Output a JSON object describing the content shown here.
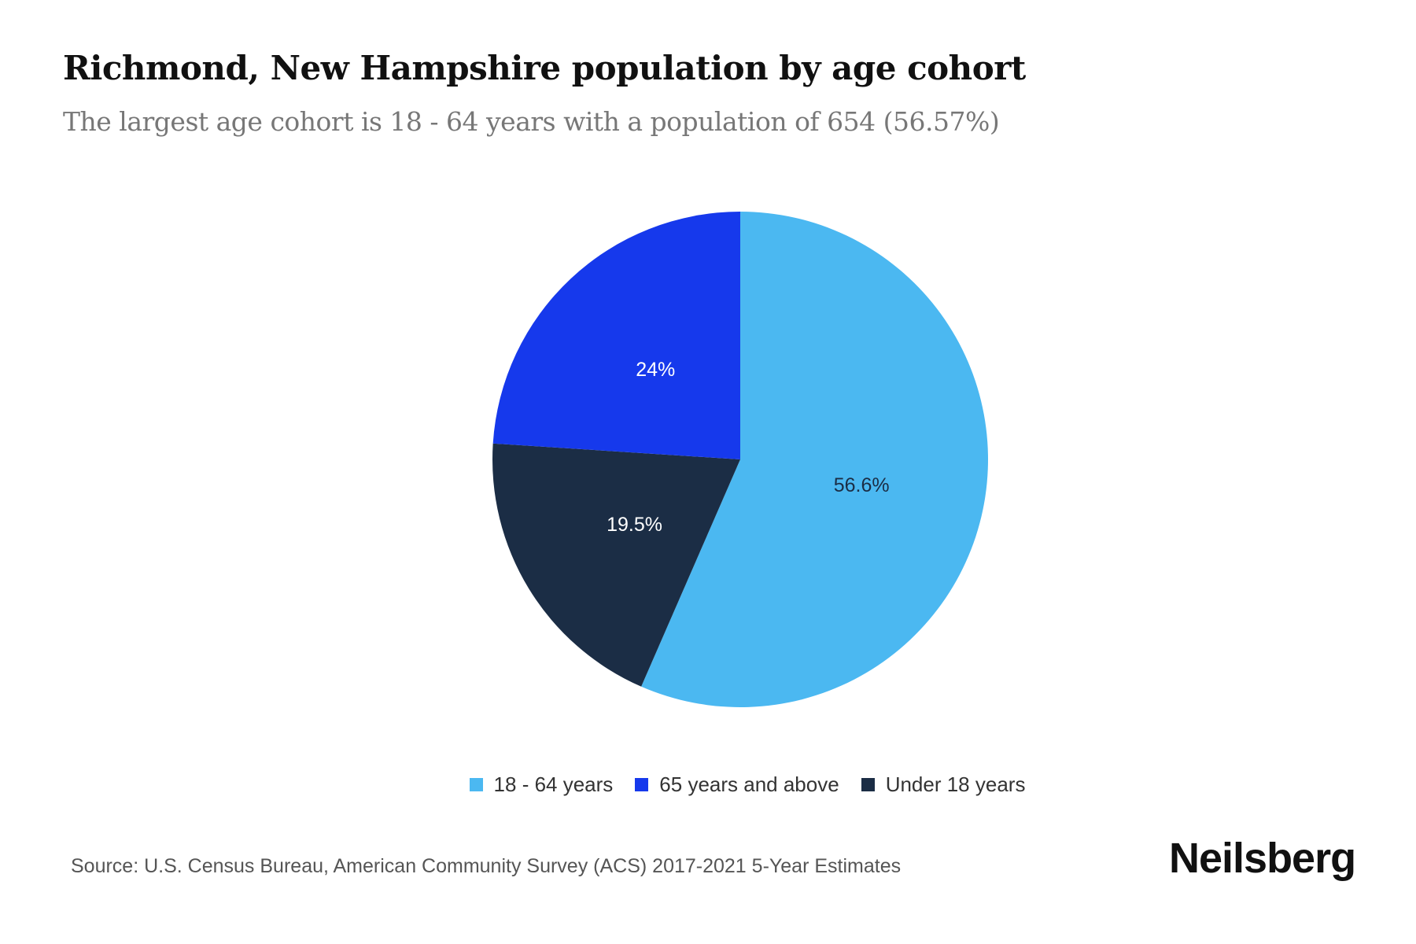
{
  "chart_data": {
    "type": "pie",
    "title": "Richmond, New Hampshire population by age cohort",
    "subtitle": "The largest age cohort is 18 - 64 years with a population of 654 (56.57%)",
    "slices": [
      {
        "name": "18 - 64 years",
        "value": 56.6,
        "label": "56.6%",
        "color": "#4bb8f1",
        "label_color": "#1b2d45"
      },
      {
        "name": "Under 18 years",
        "value": 19.5,
        "label": "19.5%",
        "color": "#1b2d45",
        "label_color": "#ffffff"
      },
      {
        "name": "65 years and above",
        "value": 24,
        "label": "24%",
        "color": "#1639ec",
        "label_color": "#ffffff"
      }
    ],
    "legend": [
      "18 - 64 years",
      "65 years and above",
      "Under 18 years"
    ],
    "legend_colors": [
      "#4bb8f1",
      "#1639ec",
      "#1b2d45"
    ],
    "legend_position": "bottom"
  },
  "source": "Source: U.S. Census Bureau, American Community Survey (ACS) 2017-2021 5-Year Estimates",
  "brand": "Neilsberg"
}
